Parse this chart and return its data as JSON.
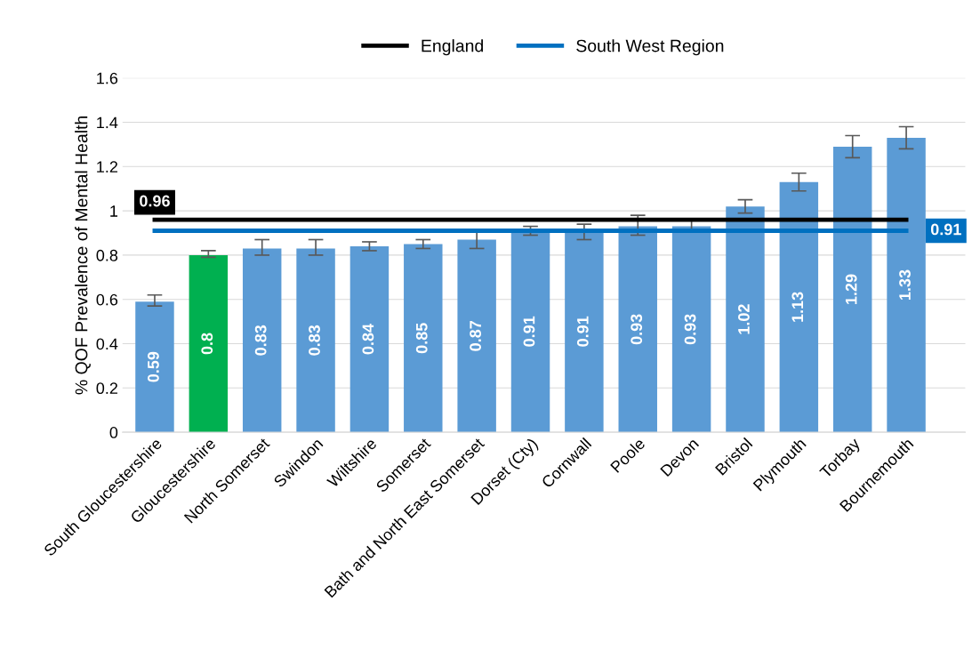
{
  "chart_data": {
    "type": "bar",
    "ylabel": "% QOF Prevalence of Mental Health",
    "categories": [
      "South Gloucestershire",
      "Gloucestershire",
      "North Somerset",
      "Swindon",
      "Wiltshire",
      "Somerset",
      "Bath and North East Somerset",
      "Dorset (Cty)",
      "Cornwall",
      "Poole",
      "Devon",
      "Bristol",
      "Plymouth",
      "Torbay",
      "Bournemouth"
    ],
    "series": [
      {
        "colors": [
          "#5b9bd5",
          "#00b050",
          "#5b9bd5",
          "#5b9bd5",
          "#5b9bd5",
          "#5b9bd5",
          "#5b9bd5",
          "#5b9bd5",
          "#5b9bd5",
          "#5b9bd5",
          "#5b9bd5",
          "#5b9bd5",
          "#5b9bd5",
          "#5b9bd5",
          "#5b9bd5"
        ],
        "values": [
          0.59,
          0.8,
          0.83,
          0.83,
          0.84,
          0.85,
          0.87,
          0.91,
          0.91,
          0.93,
          0.93,
          1.02,
          1.13,
          1.29,
          1.33
        ],
        "errors": [
          [
            0.57,
            0.62
          ],
          [
            0.79,
            0.82
          ],
          [
            0.8,
            0.87
          ],
          [
            0.8,
            0.87
          ],
          [
            0.82,
            0.86
          ],
          [
            0.83,
            0.87
          ],
          [
            0.83,
            0.91
          ],
          [
            0.89,
            0.93
          ],
          [
            0.87,
            0.94
          ],
          [
            0.89,
            0.98
          ],
          [
            0.91,
            0.96
          ],
          [
            0.99,
            1.05
          ],
          [
            1.09,
            1.17
          ],
          [
            1.24,
            1.34
          ],
          [
            1.28,
            1.38
          ]
        ]
      },
      {
        "type": "line",
        "name": "England",
        "color": "#000000",
        "values": [
          0.96,
          0.96,
          0.96,
          0.96,
          0.96,
          0.96,
          0.96,
          0.96,
          0.96,
          0.96,
          0.96,
          0.96,
          0.96,
          0.96,
          0.96
        ],
        "value_labels": [
          "0.96",
          null,
          null,
          null,
          null,
          null,
          null,
          null,
          null,
          null,
          null,
          null,
          null,
          null,
          null
        ]
      },
      {
        "type": "line",
        "name": "South West Region",
        "color": "#0070c0",
        "values": [
          0.91,
          0.91,
          0.91,
          0.91,
          0.91,
          0.91,
          0.91,
          0.91,
          0.91,
          0.91,
          0.91,
          0.91,
          0.91,
          0.91,
          0.91
        ],
        "value_labels": [
          null,
          null,
          null,
          null,
          null,
          null,
          null,
          null,
          null,
          null,
          null,
          null,
          null,
          null,
          "0.91"
        ]
      }
    ],
    "data_labels": true,
    "ylim": [
      0,
      1.6
    ],
    "yticks": [
      0,
      0.2,
      0.4,
      0.6,
      0.8,
      1,
      1.2,
      1.4,
      1.6
    ],
    "grid": "y",
    "legend": "top"
  }
}
